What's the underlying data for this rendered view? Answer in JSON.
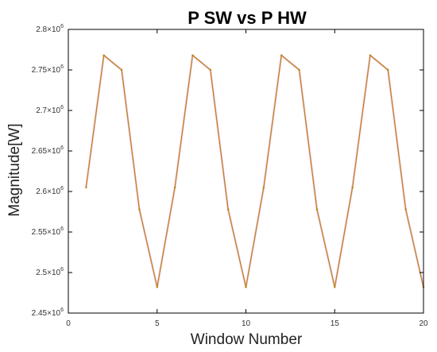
{
  "chart_data": {
    "type": "line",
    "title": "P SW vs P HW",
    "xlabel": "Window Number",
    "ylabel": "Magnitude[W]",
    "xlim": [
      0,
      20
    ],
    "ylim": [
      2450000,
      2800000
    ],
    "x_ticks": [
      0,
      5,
      10,
      15,
      20
    ],
    "x_tick_labels": [
      "0",
      "5",
      "10",
      "15",
      "20"
    ],
    "y_ticks": [
      2450000,
      2500000,
      2550000,
      2600000,
      2650000,
      2700000,
      2750000,
      2800000
    ],
    "y_tick_labels": [
      {
        "mantissa": "2.45",
        "exp": "6"
      },
      {
        "mantissa": "2.5",
        "exp": "6"
      },
      {
        "mantissa": "2.55",
        "exp": "6"
      },
      {
        "mantissa": "2.6",
        "exp": "6"
      },
      {
        "mantissa": "2.65",
        "exp": "6"
      },
      {
        "mantissa": "2.7",
        "exp": "6"
      },
      {
        "mantissa": "2.75",
        "exp": "6"
      },
      {
        "mantissa": "2.8",
        "exp": "6"
      }
    ],
    "grid": false,
    "series": [
      {
        "color": "#f7c8f7",
        "x": [
          1,
          2,
          3,
          4,
          5,
          6,
          7,
          8,
          9,
          10,
          11,
          12,
          13,
          14,
          15,
          16,
          17,
          18,
          19,
          20
        ],
        "values": [
          2605000,
          2768000,
          2750000,
          2578000,
          2482000,
          2605000,
          2768000,
          2750000,
          2578000,
          2482000,
          2605000,
          2768000,
          2750000,
          2578000,
          2482000,
          2605000,
          2768000,
          2750000,
          2578000,
          2482000
        ]
      },
      {
        "color": "#b8860b",
        "x": [
          1,
          2,
          3,
          4,
          5,
          6,
          7,
          8,
          9,
          10,
          11,
          12,
          13,
          14,
          15,
          16,
          17,
          18,
          19,
          20
        ],
        "values": [
          2605000,
          2768000,
          2750000,
          2578000,
          2482000,
          2605000,
          2768000,
          2750000,
          2578000,
          2482000,
          2605000,
          2768000,
          2750000,
          2578000,
          2482000,
          2605000,
          2768000,
          2750000,
          2578000,
          2482000
        ]
      }
    ]
  }
}
